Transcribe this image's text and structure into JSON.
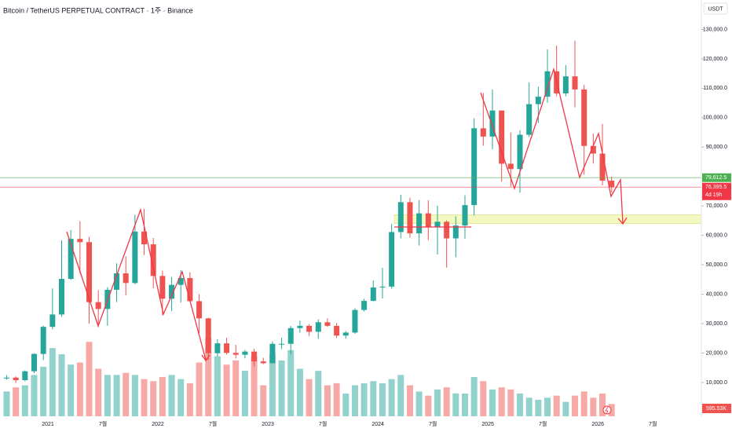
{
  "chart_data": {
    "type": "candlestick",
    "title": "Bitcoin / TetherUS PERPETUAL CONTRACT · 1주 · Binance",
    "currency": "USDT",
    "up_color": "#26a69a",
    "down_color": "#ef5350",
    "grid": false,
    "categories": [
      null,
      null,
      null,
      null,
      null,
      "2021",
      null,
      null,
      null,
      null,
      null,
      "7월",
      null,
      null,
      null,
      null,
      null,
      "2022",
      null,
      null,
      null,
      null,
      null,
      "7월",
      null,
      null,
      null,
      null,
      null,
      "2023",
      null,
      null,
      null,
      null,
      null,
      "7월",
      null,
      null,
      null,
      null,
      null,
      "2024",
      null,
      null,
      null,
      null,
      null,
      "7월",
      null,
      null,
      null,
      null,
      null,
      "2025",
      null,
      null,
      null,
      null,
      null,
      "7월",
      null,
      null,
      null,
      null,
      null,
      "2026",
      null,
      null,
      null,
      null,
      null,
      "7월",
      null,
      null,
      null
    ],
    "open": [
      11350,
      11650,
      10780,
      13800,
      19700,
      28900,
      33100,
      45200,
      58800,
      57700,
      37300,
      35000,
      41500,
      47100,
      43800,
      61300,
      56950,
      46200,
      38470,
      43160,
      45510,
      37630,
      31800,
      19940,
      23300,
      20050,
      19420,
      20490,
      17160,
      16540,
      23130,
      23140,
      28480,
      29250,
      27220,
      30470,
      29230,
      25940,
      26960,
      34640,
      37720,
      42280,
      42580,
      61130,
      71280,
      60670,
      67490,
      62770,
      64630,
      58970,
      63330,
      70290,
      96400,
      93580,
      102430,
      84350,
      82550,
      94200,
      104600,
      107130,
      115760,
      108250,
      114050,
      109600,
      90400,
      87800,
      78600,
      null,
      null,
      null,
      null,
      null,
      null,
      null,
      null
    ],
    "high": [
      12470,
      12050,
      14100,
      19900,
      29300,
      41950,
      58350,
      61800,
      64850,
      59500,
      41300,
      42400,
      50500,
      52900,
      67000,
      69000,
      59100,
      47990,
      45800,
      48200,
      47450,
      40000,
      31990,
      24670,
      25200,
      22800,
      21080,
      21480,
      18400,
      23960,
      25250,
      29200,
      31000,
      29820,
      31430,
      31800,
      30230,
      27480,
      35200,
      38450,
      44700,
      48970,
      63900,
      73800,
      72800,
      71980,
      71950,
      70080,
      65100,
      66500,
      73620,
      99800,
      108350,
      109600,
      102500,
      95000,
      95750,
      111980,
      110530,
      123200,
      124470,
      117900,
      126200,
      111200,
      94600,
      97900,
      80000,
      null,
      null,
      null,
      null,
      null,
      null,
      null,
      null
    ],
    "low": [
      10980,
      9820,
      10380,
      13200,
      17600,
      28100,
      32300,
      44900,
      47000,
      30000,
      28800,
      29300,
      37300,
      39600,
      43300,
      53300,
      42000,
      32900,
      34300,
      37150,
      37700,
      26700,
      17600,
      18780,
      19500,
      18150,
      18190,
      15480,
      16250,
      16500,
      21350,
      19550,
      26940,
      25800,
      24800,
      28860,
      25160,
      24900,
      26550,
      34100,
      37600,
      38550,
      41900,
      59000,
      59200,
      56550,
      58400,
      53500,
      49000,
      52550,
      58900,
      66800,
      90500,
      89250,
      78260,
      76600,
      74500,
      93400,
      98200,
      105100,
      107300,
      107250,
      103500,
      80600,
      84400,
      77000,
      74600,
      null,
      null,
      null,
      null,
      null,
      null,
      null,
      null
    ],
    "close": [
      11650,
      10780,
      13800,
      19700,
      28900,
      33100,
      45200,
      58800,
      57700,
      37300,
      35000,
      41500,
      47100,
      43800,
      61300,
      56950,
      46200,
      38470,
      43160,
      45510,
      37630,
      31800,
      19940,
      23300,
      20050,
      19420,
      20490,
      17160,
      16540,
      23130,
      23140,
      28480,
      29250,
      27220,
      30470,
      29230,
      25940,
      26960,
      34640,
      37720,
      42280,
      42580,
      61130,
      71280,
      60670,
      67490,
      62770,
      64630,
      58970,
      63330,
      70290,
      96400,
      93580,
      102430,
      84350,
      82550,
      94200,
      104600,
      107130,
      115760,
      108250,
      114050,
      109600,
      90400,
      87800,
      78600,
      76395.5,
      null,
      null,
      null,
      null,
      null,
      null,
      null,
      null
    ],
    "volume": {
      "values": [
        1200000,
        1400000,
        1500000,
        2000000,
        2400000,
        3300000,
        3000000,
        2500000,
        2600000,
        3600000,
        2300000,
        2000000,
        2000000,
        2100000,
        2000000,
        1800000,
        1700000,
        1900000,
        2000000,
        1800000,
        1600000,
        2600000,
        3800000,
        2900000,
        2500000,
        2700000,
        2200000,
        2900000,
        1500000,
        3000000,
        2700000,
        3200000,
        2300000,
        1800000,
        2200000,
        1500000,
        1600000,
        1100000,
        1500000,
        1600000,
        1700000,
        1600000,
        1800000,
        2000000,
        1500000,
        1200000,
        1000000,
        1300000,
        1400000,
        1100000,
        1100000,
        1900000,
        1700000,
        1300000,
        1400000,
        1300000,
        1100000,
        900000,
        800000,
        900000,
        1000000,
        700000,
        1000000,
        1200000,
        900000,
        1100000,
        595530,
        null,
        null,
        null,
        null,
        null,
        null,
        null,
        null
      ],
      "value_labels": [
        null,
        null,
        null,
        null,
        null,
        null,
        null,
        null,
        null,
        null,
        null,
        null,
        null,
        null,
        null,
        null,
        null,
        null,
        null,
        null,
        null,
        null,
        null,
        null,
        null,
        null,
        null,
        null,
        null,
        null,
        null,
        null,
        null,
        null,
        null,
        null,
        null,
        null,
        null,
        null,
        null,
        null,
        null,
        null,
        null,
        null,
        null,
        null,
        null,
        null,
        null,
        null,
        null,
        null,
        null,
        null,
        null,
        null,
        null,
        null,
        null,
        null,
        null,
        null,
        null,
        null,
        "595.53K",
        null,
        null,
        null,
        null,
        null,
        null,
        null,
        null
      ]
    },
    "ylim": [
      -1500,
      140000
    ],
    "yticks": [
      {
        "value": 10000,
        "label": "10,000.0"
      },
      {
        "value": 20000,
        "label": "20,000.0"
      },
      {
        "value": 30000,
        "label": "30,000.0"
      },
      {
        "value": 40000,
        "label": "40,000.0"
      },
      {
        "value": 50000,
        "label": "50,000.0"
      },
      {
        "value": 60000,
        "label": "60,000.0"
      },
      {
        "value": 70000,
        "label": "70,000.0"
      },
      {
        "value": 90000,
        "label": "90,000.0"
      },
      {
        "value": 100000,
        "label": "100,000.0"
      },
      {
        "value": 110000,
        "label": "110,000.0"
      },
      {
        "value": 120000,
        "label": "120,000.0"
      },
      {
        "value": 130000,
        "label": "130,000.0"
      }
    ],
    "price_lines": [
      {
        "value": 79612.5,
        "label": "79,612.5",
        "color": "#4caf50"
      },
      {
        "value": 76395.5,
        "label": "76,395.5",
        "color": "#f23645",
        "countdown": "4d 19h"
      }
    ],
    "zone": {
      "from": 64000,
      "to": 67000,
      "color": "#f4f9c2"
    }
  }
}
